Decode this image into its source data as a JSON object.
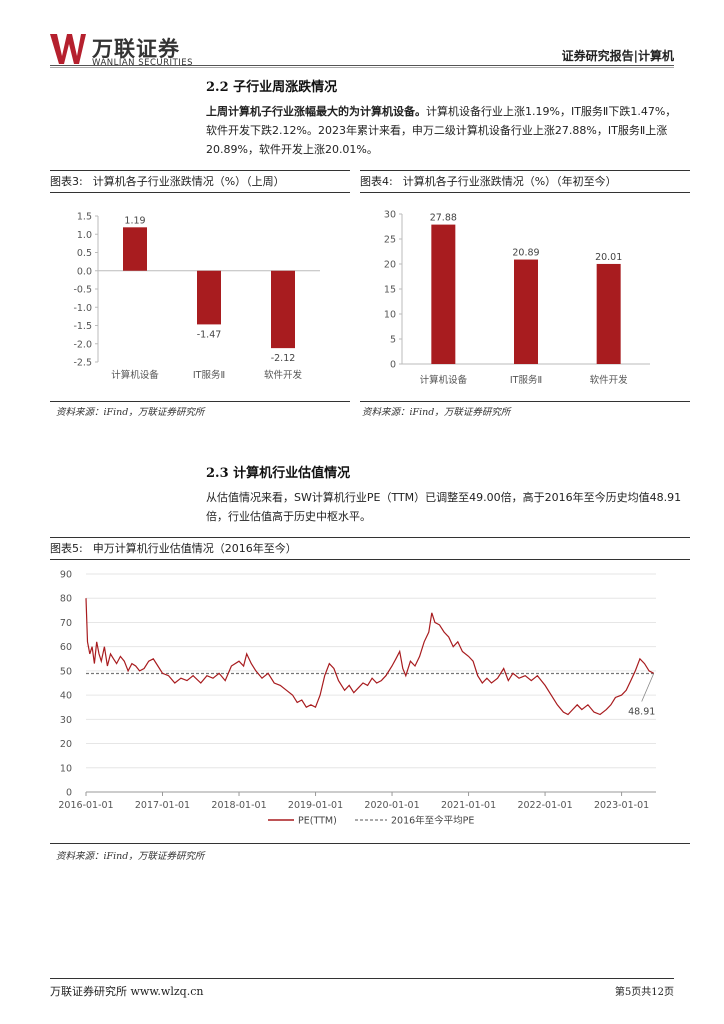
{
  "header": {
    "logo_cn": "万联证券",
    "logo_en": "WANLIAN SECURITIES",
    "report_type": "证券研究报告|计算机"
  },
  "section_22": {
    "title": "2.2  子行业周涨跌情况",
    "bold_lead": "上周计算机子行业涨幅最大的为计算机设备。",
    "text": "计算机设备行业上涨1.19%，IT服务Ⅱ下跌1.47%，软件开发下跌2.12%。2023年累计来看，申万二级计算机设备行业上涨27.88%，IT服务Ⅱ上涨20.89%，软件开发上涨20.01%。"
  },
  "fig3": {
    "label": "图表3:",
    "title": "计算机各子行业涨跌情况（%）（上周）"
  },
  "fig4": {
    "label": "图表4:",
    "title": "计算机各子行业涨跌情况（%）（年初至今）"
  },
  "source": "资料来源：iFind，万联证券研究所",
  "section_23": {
    "title": "2.3  计算机行业估值情况",
    "text": "从估值情况来看，SW计算机行业PE（TTM）已调整至49.00倍，高于2016年至今历史均值48.91倍，行业估值高于历史中枢水平。"
  },
  "fig5": {
    "label": "图表5:",
    "title": "申万计算机行业估值情况（2016年至今）"
  },
  "footer": {
    "left": "万联证券研究所 www.wlzq.cn",
    "right": "第5页共12页"
  },
  "colors": {
    "bar": "#a81c1f",
    "line": "#a81c1f",
    "avg": "#777777",
    "brand": "#b5202e"
  },
  "chart_data": [
    {
      "type": "bar",
      "title": "计算机各子行业涨跌情况（%）（上周）",
      "categories": [
        "计算机设备",
        "IT服务Ⅱ",
        "软件开发"
      ],
      "values": [
        1.19,
        -1.47,
        -2.12
      ],
      "data_labels": [
        "1.19",
        "-1.47",
        "-2.12"
      ],
      "ylim": [
        -2.5,
        1.5
      ],
      "yticks": [
        "1.5",
        "1.0",
        "0.5",
        "0.0",
        "-0.5",
        "-1.0",
        "-1.5",
        "-2.0",
        "-2.5"
      ]
    },
    {
      "type": "bar",
      "title": "计算机各子行业涨跌情况（%）（年初至今）",
      "categories": [
        "计算机设备",
        "IT服务Ⅱ",
        "软件开发"
      ],
      "values": [
        27.88,
        20.89,
        20.01
      ],
      "data_labels": [
        "27.88",
        "20.89",
        "20.01"
      ],
      "ylim": [
        0,
        30
      ],
      "yticks": [
        "30",
        "25",
        "20",
        "15",
        "10",
        "5",
        "0"
      ]
    },
    {
      "type": "line",
      "title": "申万计算机行业估值情况（2016年至今）",
      "xticks": [
        "2016-01-01",
        "2017-01-01",
        "2018-01-01",
        "2019-01-01",
        "2020-01-01",
        "2021-01-01",
        "2022-01-01",
        "2023-01-01"
      ],
      "yticks": [
        "90",
        "80",
        "70",
        "60",
        "50",
        "40",
        "30",
        "20",
        "10",
        "0"
      ],
      "ylim": [
        0,
        90
      ],
      "xrange_years": [
        2016.0,
        2023.45
      ],
      "average": 48.91,
      "average_label": "48.91",
      "legend": [
        "PE(TTM)",
        "2016年至今平均PE"
      ],
      "series": [
        {
          "name": "PE(TTM)",
          "points": [
            [
              2016.0,
              80
            ],
            [
              2016.02,
              62
            ],
            [
              2016.05,
              57
            ],
            [
              2016.08,
              60
            ],
            [
              2016.11,
              53
            ],
            [
              2016.14,
              62
            ],
            [
              2016.17,
              57
            ],
            [
              2016.2,
              54
            ],
            [
              2016.24,
              60
            ],
            [
              2016.28,
              52
            ],
            [
              2016.32,
              57
            ],
            [
              2016.36,
              55
            ],
            [
              2016.4,
              53
            ],
            [
              2016.45,
              56
            ],
            [
              2016.5,
              54
            ],
            [
              2016.55,
              50
            ],
            [
              2016.6,
              53
            ],
            [
              2016.65,
              52
            ],
            [
              2016.7,
              50
            ],
            [
              2016.76,
              51
            ],
            [
              2016.82,
              54
            ],
            [
              2016.88,
              55
            ],
            [
              2016.94,
              52
            ],
            [
              2017.0,
              49
            ],
            [
              2017.08,
              48
            ],
            [
              2017.16,
              45
            ],
            [
              2017.24,
              47
            ],
            [
              2017.32,
              46
            ],
            [
              2017.4,
              48
            ],
            [
              2017.5,
              45
            ],
            [
              2017.58,
              48
            ],
            [
              2017.66,
              47
            ],
            [
              2017.74,
              49
            ],
            [
              2017.82,
              46
            ],
            [
              2017.9,
              52
            ],
            [
              2018.0,
              54
            ],
            [
              2018.06,
              52
            ],
            [
              2018.1,
              57
            ],
            [
              2018.16,
              53
            ],
            [
              2018.22,
              50
            ],
            [
              2018.3,
              47
            ],
            [
              2018.38,
              49
            ],
            [
              2018.46,
              45
            ],
            [
              2018.54,
              44
            ],
            [
              2018.62,
              42
            ],
            [
              2018.7,
              40
            ],
            [
              2018.76,
              37
            ],
            [
              2018.82,
              38
            ],
            [
              2018.88,
              35
            ],
            [
              2018.94,
              36
            ],
            [
              2019.0,
              35
            ],
            [
              2019.06,
              40
            ],
            [
              2019.12,
              48
            ],
            [
              2019.18,
              53
            ],
            [
              2019.24,
              51
            ],
            [
              2019.3,
              46
            ],
            [
              2019.38,
              42
            ],
            [
              2019.44,
              44
            ],
            [
              2019.5,
              41
            ],
            [
              2019.56,
              43
            ],
            [
              2019.62,
              45
            ],
            [
              2019.68,
              44
            ],
            [
              2019.74,
              47
            ],
            [
              2019.8,
              45
            ],
            [
              2019.86,
              46
            ],
            [
              2019.92,
              48
            ],
            [
              2020.0,
              52
            ],
            [
              2020.05,
              55
            ],
            [
              2020.1,
              58
            ],
            [
              2020.14,
              51
            ],
            [
              2020.18,
              48
            ],
            [
              2020.24,
              54
            ],
            [
              2020.3,
              52
            ],
            [
              2020.36,
              56
            ],
            [
              2020.42,
              62
            ],
            [
              2020.48,
              66
            ],
            [
              2020.52,
              74
            ],
            [
              2020.56,
              70
            ],
            [
              2020.62,
              69
            ],
            [
              2020.68,
              66
            ],
            [
              2020.74,
              64
            ],
            [
              2020.8,
              60
            ],
            [
              2020.86,
              62
            ],
            [
              2020.92,
              58
            ],
            [
              2021.0,
              56
            ],
            [
              2021.06,
              54
            ],
            [
              2021.12,
              48
            ],
            [
              2021.18,
              45
            ],
            [
              2021.24,
              47
            ],
            [
              2021.3,
              45
            ],
            [
              2021.38,
              47
            ],
            [
              2021.46,
              51
            ],
            [
              2021.52,
              46
            ],
            [
              2021.58,
              49
            ],
            [
              2021.66,
              47
            ],
            [
              2021.74,
              48
            ],
            [
              2021.82,
              46
            ],
            [
              2021.9,
              48
            ],
            [
              2022.0,
              44
            ],
            [
              2022.08,
              40
            ],
            [
              2022.16,
              36
            ],
            [
              2022.24,
              33
            ],
            [
              2022.3,
              32
            ],
            [
              2022.36,
              34
            ],
            [
              2022.42,
              36
            ],
            [
              2022.48,
              34
            ],
            [
              2022.56,
              36
            ],
            [
              2022.64,
              33
            ],
            [
              2022.72,
              32
            ],
            [
              2022.8,
              34
            ],
            [
              2022.86,
              36
            ],
            [
              2022.92,
              39
            ],
            [
              2023.0,
              40
            ],
            [
              2023.06,
              42
            ],
            [
              2023.12,
              46
            ],
            [
              2023.18,
              50
            ],
            [
              2023.24,
              55
            ],
            [
              2023.3,
              53
            ],
            [
              2023.36,
              50
            ],
            [
              2023.42,
              49
            ]
          ]
        }
      ]
    }
  ]
}
